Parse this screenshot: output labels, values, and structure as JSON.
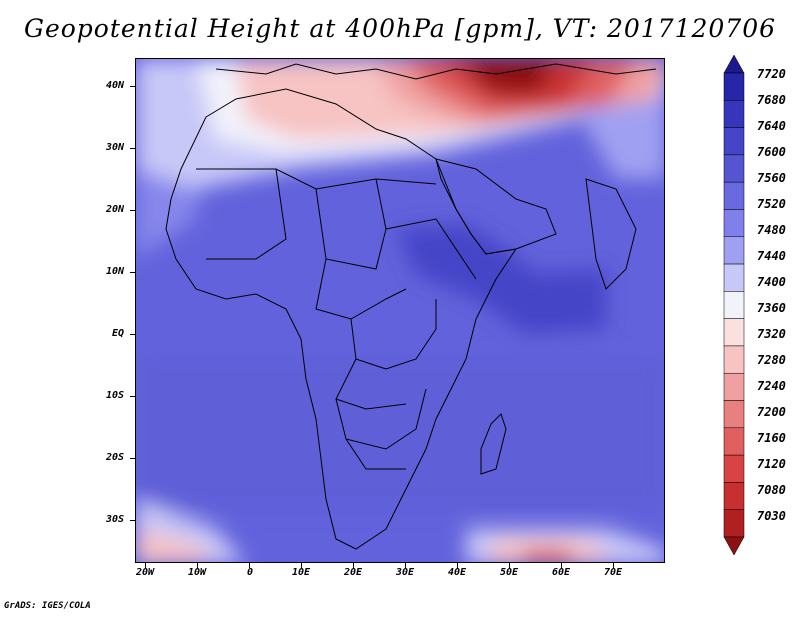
{
  "title": "Geopotential Height at 400hPa [gpm], VT: 2017120706",
  "footer": "GrADS: IGES/COLA",
  "axes": {
    "lat_labels": [
      "40N",
      "30N",
      "20N",
      "10N",
      "EQ",
      "10S",
      "20S",
      "30S"
    ],
    "lon_labels": [
      "20W",
      "10W",
      "0",
      "10E",
      "20E",
      "30E",
      "40E",
      "50E",
      "60E",
      "70E"
    ]
  },
  "colorbar": {
    "levels": [
      "7720",
      "7680",
      "7640",
      "7600",
      "7560",
      "7520",
      "7480",
      "7440",
      "7400",
      "7360",
      "7320",
      "7280",
      "7240",
      "7200",
      "7160",
      "7120",
      "7080",
      "7030"
    ],
    "colors": [
      "#1a1a8e",
      "#2626a8",
      "#3636bd",
      "#4545c8",
      "#5555d2",
      "#6a6ae0",
      "#8080ea",
      "#a0a0f2",
      "#c8c8f8",
      "#f2f2fb",
      "#fbe0e0",
      "#f7c3c3",
      "#f0a0a0",
      "#e88080",
      "#e06060",
      "#d84444",
      "#c83030",
      "#b02020",
      "#8e1010"
    ]
  },
  "map": {
    "variable": "Geopotential Height",
    "level": "400hPa",
    "units": "gpm",
    "valid_time": "2017120706"
  }
}
